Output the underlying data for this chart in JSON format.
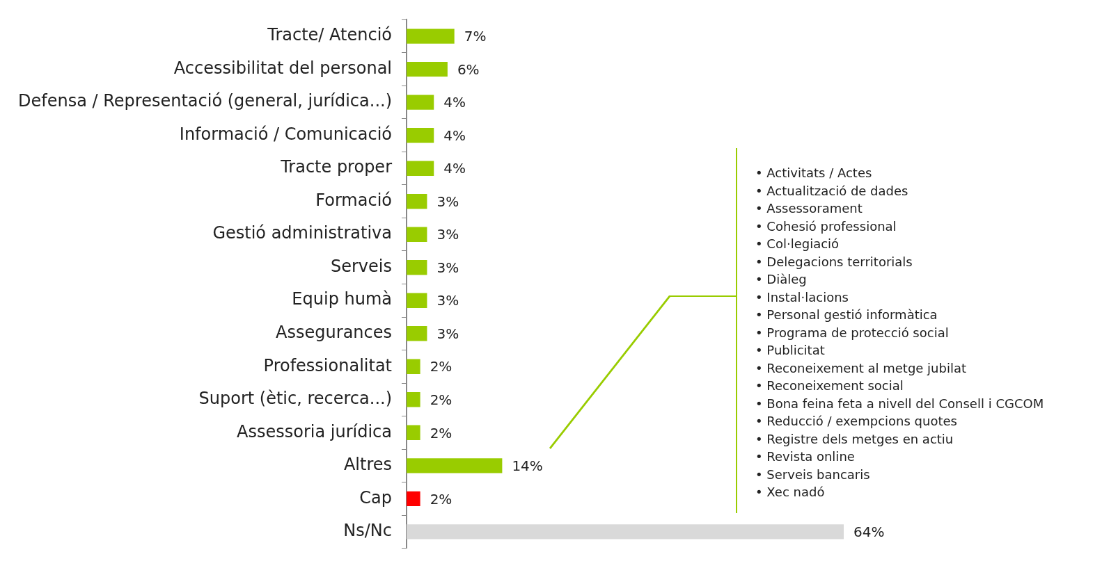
{
  "chart_data": {
    "type": "bar",
    "orientation": "horizontal",
    "categories": [
      "Tracte/ Atenció",
      "Accessibilitat del personal",
      "Defensa / Representació (general, jurídica...)",
      "Informació / Comunicació",
      "Tracte proper",
      "Formació",
      "Gestió administrativa",
      "Serveis",
      "Equip humà",
      "Assegurances",
      "Professionalitat",
      "Suport (ètic, recerca...)",
      "Assessoria jurídica",
      "Altres",
      "Cap",
      "Ns/Nc"
    ],
    "values": [
      7,
      6,
      4,
      4,
      4,
      3,
      3,
      3,
      3,
      3,
      2,
      2,
      2,
      14,
      2,
      64
    ],
    "value_labels": [
      "7%",
      "6%",
      "4%",
      "4%",
      "4%",
      "3%",
      "3%",
      "3%",
      "3%",
      "3%",
      "2%",
      "2%",
      "2%",
      "14%",
      "2%",
      "64%"
    ],
    "colors": [
      "#99cc00",
      "#99cc00",
      "#99cc00",
      "#99cc00",
      "#99cc00",
      "#99cc00",
      "#99cc00",
      "#99cc00",
      "#99cc00",
      "#99cc00",
      "#99cc00",
      "#99cc00",
      "#99cc00",
      "#99cc00",
      "#ff0000",
      "#d9d9d9"
    ],
    "annotations": [
      "• Activitats / Actes",
      "• Actualització de dades",
      "• Assessorament",
      "• Cohesió professional",
      "• Col·legiació",
      "• Delegacions territorials",
      "• Diàleg",
      "• Instal·lacions",
      "• Personal gestió informàtica",
      "• Programa de protecció social",
      "• Publicitat",
      "• Reconeixement al metge jubilat",
      "• Reconeixement social",
      "• Bona feina feta a nivell del Consell i CGCOM",
      "• Reducció / exempcions quotes",
      "• Registre dels metges en actiu",
      "• Revista online",
      "• Serveis bancaris",
      "• Xec nadó"
    ],
    "grid": false,
    "legend": false
  }
}
